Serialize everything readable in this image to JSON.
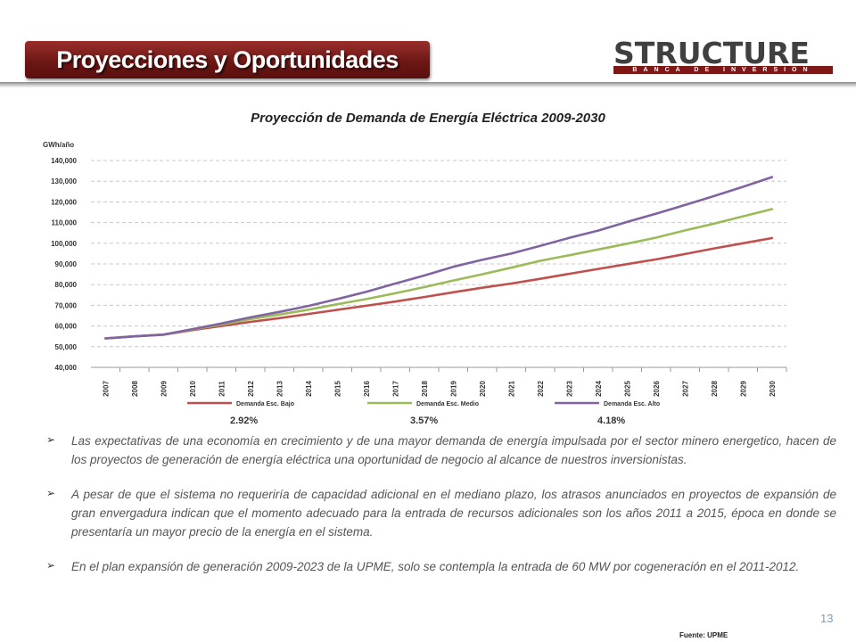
{
  "header": {
    "title": "Proyecciones y Oportunidades",
    "logo_word": "STRUCTURE",
    "logo_tagline": "BANCA DE INVERSION"
  },
  "colors": {
    "banner": "#7d1816",
    "low": "#c0504d",
    "mid": "#9bbb59",
    "high": "#8064a2"
  },
  "chart_data": {
    "type": "line",
    "title": "Proyección de Demanda de Energía Eléctrica 2009-2030",
    "ylabel": "GWh/año",
    "ylim": [
      40000,
      140000
    ],
    "yticks": [
      "40,000",
      "50,000",
      "60,000",
      "70,000",
      "80,000",
      "90,000",
      "100,000",
      "110,000",
      "120,000",
      "130,000",
      "140,000"
    ],
    "x": [
      "2007",
      "2008",
      "2009",
      "2010",
      "2011",
      "2012",
      "2013",
      "2014",
      "2015",
      "2016",
      "2017",
      "2018",
      "2019",
      "2020",
      "2021",
      "2022",
      "2023",
      "2024",
      "2025",
      "2026",
      "2027",
      "2028",
      "2029",
      "2030"
    ],
    "grid": true,
    "legend_position": "bottom",
    "series": [
      {
        "name": "Demanda Esc. Bajo",
        "growth": "2.92%",
        "color": "#c0504d",
        "values": [
          54000,
          55000,
          55800,
          58000,
          60000,
          62000,
          63800,
          65800,
          67800,
          69800,
          71800,
          74000,
          76300,
          78500,
          80500,
          82800,
          85200,
          87600,
          89900,
          92200,
          94800,
          97500,
          100000,
          102500
        ]
      },
      {
        "name": "Demanda Esc. Medio",
        "growth": "3.57%",
        "color": "#9bbb59",
        "values": [
          54000,
          55000,
          55800,
          58300,
          60700,
          63300,
          65500,
          67900,
          70500,
          73000,
          75800,
          78800,
          82000,
          85000,
          88200,
          91500,
          94200,
          97000,
          99800,
          102700,
          106200,
          109500,
          113000,
          116500
        ]
      },
      {
        "name": "Demanda Esc. Alto",
        "growth": "4.18%",
        "color": "#8064a2",
        "values": [
          54000,
          55000,
          55800,
          58500,
          61200,
          64200,
          66800,
          69700,
          73000,
          76500,
          80500,
          84400,
          88600,
          92000,
          95000,
          98700,
          102600,
          106100,
          110300,
          114300,
          118500,
          122800,
          127300,
          132000
        ]
      }
    ]
  },
  "bullets": [
    "Las expectativas de una economía en crecimiento y de una mayor demanda de energía impulsada por el sector minero energetico, hacen de los proyectos de  generación de energía eléctrica una oportunidad de negocio al alcance de nuestros inversionistas.",
    "A pesar de que el sistema no requeriría de capacidad adicional en el mediano plazo, los atrasos anunciados en proyectos de expansión de gran envergadura indican que el momento adecuado para la entrada de recursos adicionales son los años 2011 a 2015, época en donde se presentaría un mayor precio de la energía en el sistema.",
    "En el plan expansión de generación 2009-2023 de la UPME, solo se contempla la entrada de 60 MW por cogeneración en el 2011-2012."
  ],
  "footer": {
    "page_number": "13",
    "source": "Fuente: UPME"
  }
}
